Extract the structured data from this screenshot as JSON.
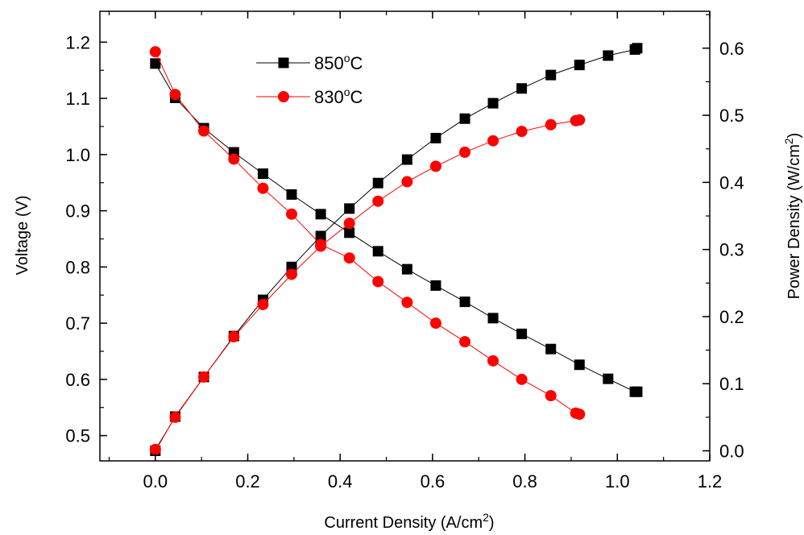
{
  "chart_data": {
    "type": "line",
    "title": "",
    "xlabel": "Current Density (A/cm",
    "xlabel_sup": "2",
    "xlabel_end": ")",
    "ylabel": "Voltage (V)",
    "y2label": "Power Density (W/cm",
    "y2label_sup": "2",
    "y2label_end": ")",
    "xlim": [
      -0.12,
      1.2
    ],
    "ylim": [
      0.455,
      1.255
    ],
    "y2lim": [
      -0.015,
      0.655
    ],
    "x_ticks": [
      "0.0",
      "0.2",
      "0.4",
      "0.6",
      "0.8",
      "1.0",
      "1.2"
    ],
    "y_ticks": [
      "0.5",
      "0.6",
      "0.7",
      "0.8",
      "0.9",
      "1.0",
      "1.1",
      "1.2"
    ],
    "y2_ticks": [
      "0.0",
      "0.1",
      "0.2",
      "0.3",
      "0.4",
      "0.5",
      "0.6"
    ],
    "legend_position": "top-left",
    "series": [
      {
        "name": "850",
        "name_sup": "o",
        "name_end": "C",
        "color": "#000000",
        "marker": "square",
        "axis": "left",
        "x": [
          0.0,
          0.043,
          0.105,
          0.17,
          0.233,
          0.295,
          0.358,
          0.42,
          0.482,
          0.545,
          0.607,
          0.67,
          0.731,
          0.793,
          0.856,
          0.918,
          0.98,
          1.038,
          1.043
        ],
        "values": [
          1.162,
          1.101,
          1.047,
          1.004,
          0.966,
          0.929,
          0.894,
          0.861,
          0.828,
          0.796,
          0.767,
          0.738,
          0.709,
          0.681,
          0.654,
          0.626,
          0.601,
          0.578,
          0.578
        ]
      },
      {
        "name": "850",
        "name_sup": "o",
        "name_end": "C",
        "color": "#000000",
        "marker": "square",
        "axis": "right",
        "x": [
          0.0,
          0.043,
          0.105,
          0.17,
          0.233,
          0.295,
          0.358,
          0.42,
          0.482,
          0.545,
          0.607,
          0.67,
          0.731,
          0.793,
          0.856,
          0.918,
          0.98,
          1.038,
          1.043
        ],
        "values": [
          0.0,
          0.051,
          0.11,
          0.171,
          0.225,
          0.274,
          0.32,
          0.361,
          0.399,
          0.434,
          0.466,
          0.495,
          0.518,
          0.54,
          0.56,
          0.575,
          0.589,
          0.598,
          0.6
        ]
      },
      {
        "name": "830",
        "name_sup": "o",
        "name_end": "C",
        "color": "#ff0000",
        "marker": "circle",
        "axis": "left",
        "x": [
          0.0,
          0.043,
          0.105,
          0.17,
          0.233,
          0.295,
          0.358,
          0.42,
          0.482,
          0.545,
          0.607,
          0.67,
          0.731,
          0.793,
          0.856,
          0.91,
          0.918
        ],
        "values": [
          1.183,
          1.107,
          1.042,
          0.992,
          0.94,
          0.894,
          0.84,
          0.816,
          0.774,
          0.737,
          0.7,
          0.667,
          0.633,
          0.6,
          0.571,
          0.54,
          0.538
        ]
      },
      {
        "name": "830",
        "name_sup": "o",
        "name_end": "C",
        "color": "#ff0000",
        "marker": "circle",
        "axis": "right",
        "x": [
          0.0,
          0.043,
          0.105,
          0.17,
          0.233,
          0.295,
          0.358,
          0.42,
          0.482,
          0.545,
          0.607,
          0.67,
          0.731,
          0.793,
          0.856,
          0.91,
          0.918
        ],
        "values": [
          0.002,
          0.05,
          0.11,
          0.17,
          0.218,
          0.263,
          0.305,
          0.339,
          0.372,
          0.401,
          0.424,
          0.445,
          0.462,
          0.476,
          0.486,
          0.492,
          0.493
        ]
      }
    ]
  }
}
